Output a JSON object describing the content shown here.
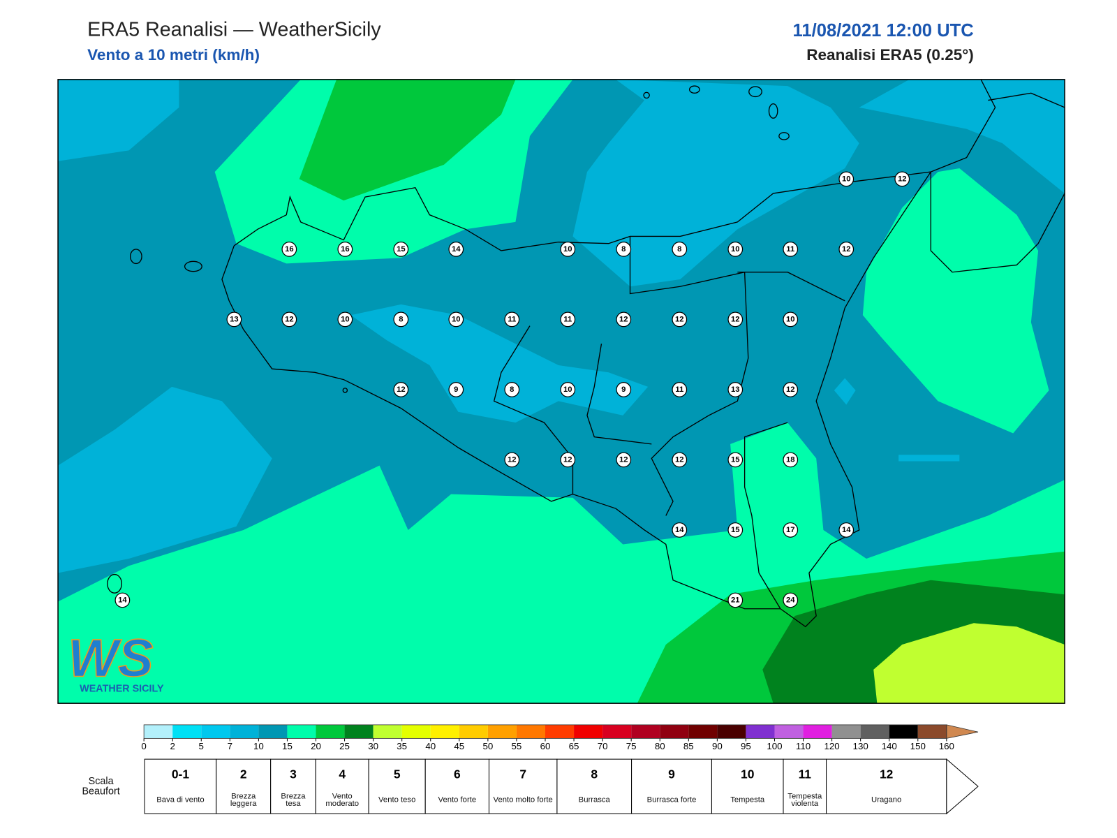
{
  "header": {
    "title": "ERA5 Reanalisi — WeatherSicily",
    "subtitle": "Vento a 10 metri (km/h)",
    "datetime": "11/08/2021 12:00 UTC",
    "source": "Reanalisi ERA5 (0.25°)"
  },
  "map": {
    "stations": [
      {
        "value": 10
      },
      {
        "value": 12
      },
      {
        "value": 16
      },
      {
        "value": 16
      },
      {
        "value": 15
      },
      {
        "value": 14
      },
      {
        "value": 10
      },
      {
        "value": 8
      },
      {
        "value": 8
      },
      {
        "value": 10
      },
      {
        "value": 11
      },
      {
        "value": 12
      },
      {
        "value": 13
      },
      {
        "value": 12
      },
      {
        "value": 10
      },
      {
        "value": 8
      },
      {
        "value": 10
      },
      {
        "value": 11
      },
      {
        "value": 11
      },
      {
        "value": 12
      },
      {
        "value": 12
      },
      {
        "value": 12
      },
      {
        "value": 10
      },
      {
        "value": 12
      },
      {
        "value": 9
      },
      {
        "value": 8
      },
      {
        "value": 10
      },
      {
        "value": 9
      },
      {
        "value": 11
      },
      {
        "value": 13
      },
      {
        "value": 12
      },
      {
        "value": 12
      },
      {
        "value": 12
      },
      {
        "value": 12
      },
      {
        "value": 12
      },
      {
        "value": 15
      },
      {
        "value": 18
      },
      {
        "value": 14
      },
      {
        "value": 15
      },
      {
        "value": 17
      },
      {
        "value": 14
      },
      {
        "value": 14
      },
      {
        "value": 21
      },
      {
        "value": 24
      }
    ]
  },
  "logo": {
    "text": "WS",
    "caption": "WEATHER SICILY"
  },
  "colorbar": {
    "ticks": [
      0,
      2,
      5,
      7,
      10,
      15,
      20,
      25,
      30,
      35,
      40,
      45,
      50,
      55,
      60,
      65,
      70,
      75,
      80,
      85,
      90,
      95,
      100,
      110,
      120,
      130,
      140,
      150,
      160
    ],
    "colors": [
      "#b3f0fb",
      "#00e0f5",
      "#00c8ee",
      "#00b2d8",
      "#0097b3",
      "#00fdab",
      "#00c83c",
      "#00821e",
      "#c0ff30",
      "#e4ff00",
      "#fff000",
      "#ffcc00",
      "#ffa000",
      "#ff7800",
      "#ff3c00",
      "#f00000",
      "#d80020",
      "#b00020",
      "#900010",
      "#700000",
      "#4a0000",
      "#8030d0",
      "#c060e0",
      "#e020e0",
      "#909090",
      "#606060",
      "#000000",
      "#8b4a2b",
      "#d08850"
    ]
  },
  "beaufort": {
    "label": "Scala Beaufort",
    "levels": [
      {
        "force": "0-1",
        "name": "Bava di vento"
      },
      {
        "force": 2,
        "name": "Brezza leggera"
      },
      {
        "force": 3,
        "name": "Brezza tesa"
      },
      {
        "force": 4,
        "name": "Vento moderato"
      },
      {
        "force": 5,
        "name": "Vento teso"
      },
      {
        "force": 6,
        "name": "Vento forte"
      },
      {
        "force": 7,
        "name": "Vento molto forte"
      },
      {
        "force": 8,
        "name": "Burrasca"
      },
      {
        "force": 9,
        "name": "Burrasca forte"
      },
      {
        "force": 10,
        "name": "Tempesta"
      },
      {
        "force": 11,
        "name": "Tempesta violenta"
      },
      {
        "force": 12,
        "name": "Uragano"
      }
    ]
  }
}
